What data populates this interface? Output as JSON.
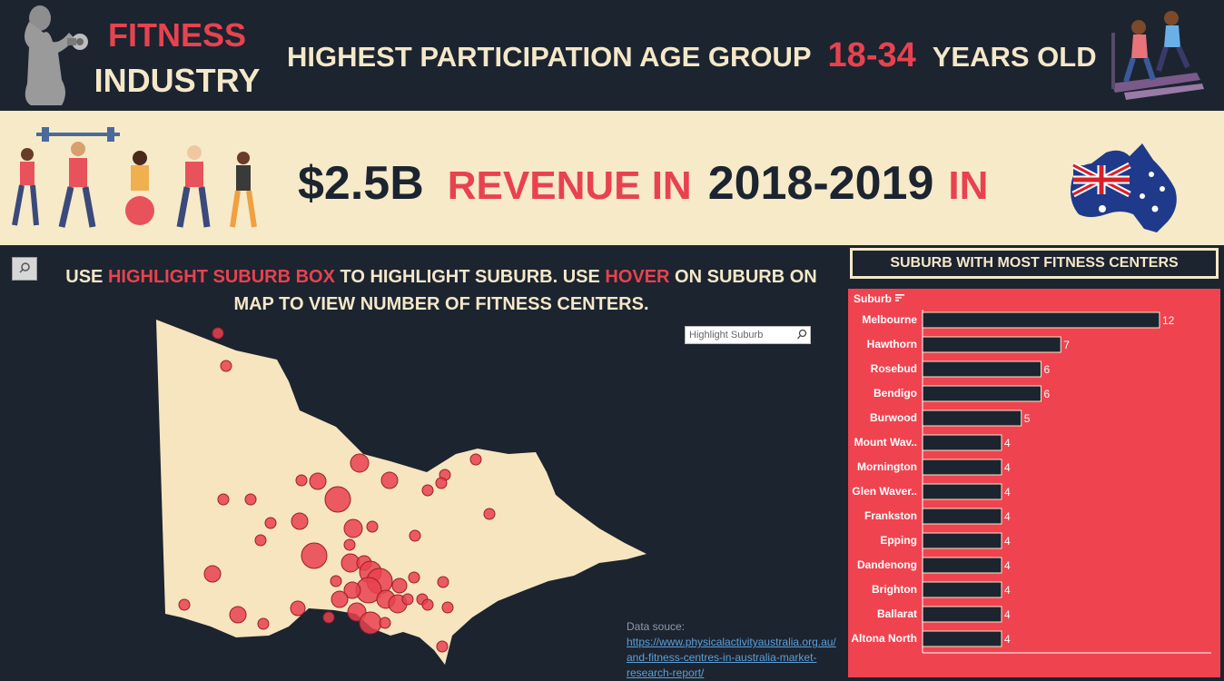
{
  "header": {
    "title_line1": "FITNESS",
    "title_line2": "INDUSTRY",
    "age_prefix": "HIGHEST PARTICIPATION AGE GROUP",
    "age_value": "18-34",
    "age_suffix": "YEARS OLD"
  },
  "banner": {
    "amount": "$2.5B",
    "revenue_in": "REVENUE IN",
    "year": "2018-2019",
    "in": "IN"
  },
  "instructions": {
    "p1": "USE ",
    "hl1": "HIGHLIGHT SUBURB BOX",
    "p2": " TO HIGHLIGHT SUBURB. USE ",
    "hl2": "HOVER",
    "p3": " ON SUBURB ON MAP TO VIEW NUMBER OF FITNESS CENTERS."
  },
  "highlight_box": {
    "placeholder": "Highlight Suburb"
  },
  "source": {
    "label": "Data souce:",
    "url": "https://www.physicalactivityaustralia.org.au/\nand-fitness-centres-in-australia-market-\nresearch-report/"
  },
  "colors": {
    "accent": "#e8424f",
    "background": "#1c2430",
    "cream": "#f6eac9",
    "bar_panel": "#ef4350"
  },
  "chart_data": [
    {
      "type": "bar",
      "orientation": "horizontal",
      "title": "SUBURB WITH MOST FITNESS CENTERS",
      "axis_header": "Suburb",
      "categories": [
        "Melbourne",
        "Hawthorn",
        "Rosebud",
        "Bendigo",
        "Burwood",
        "Mount Wav..",
        "Mornington",
        "Glen Waver..",
        "Frankston",
        "Epping",
        "Dandenong",
        "Brighton",
        "Ballarat",
        "Altona North"
      ],
      "values": [
        12,
        7,
        6,
        6,
        5,
        4,
        4,
        4,
        4,
        4,
        4,
        4,
        4,
        4
      ],
      "xlim": [
        0,
        12.6
      ]
    },
    {
      "type": "scatter",
      "title": "",
      "map_region": "Victoria, Australia",
      "marker_color": "#e8424f"
    }
  ]
}
